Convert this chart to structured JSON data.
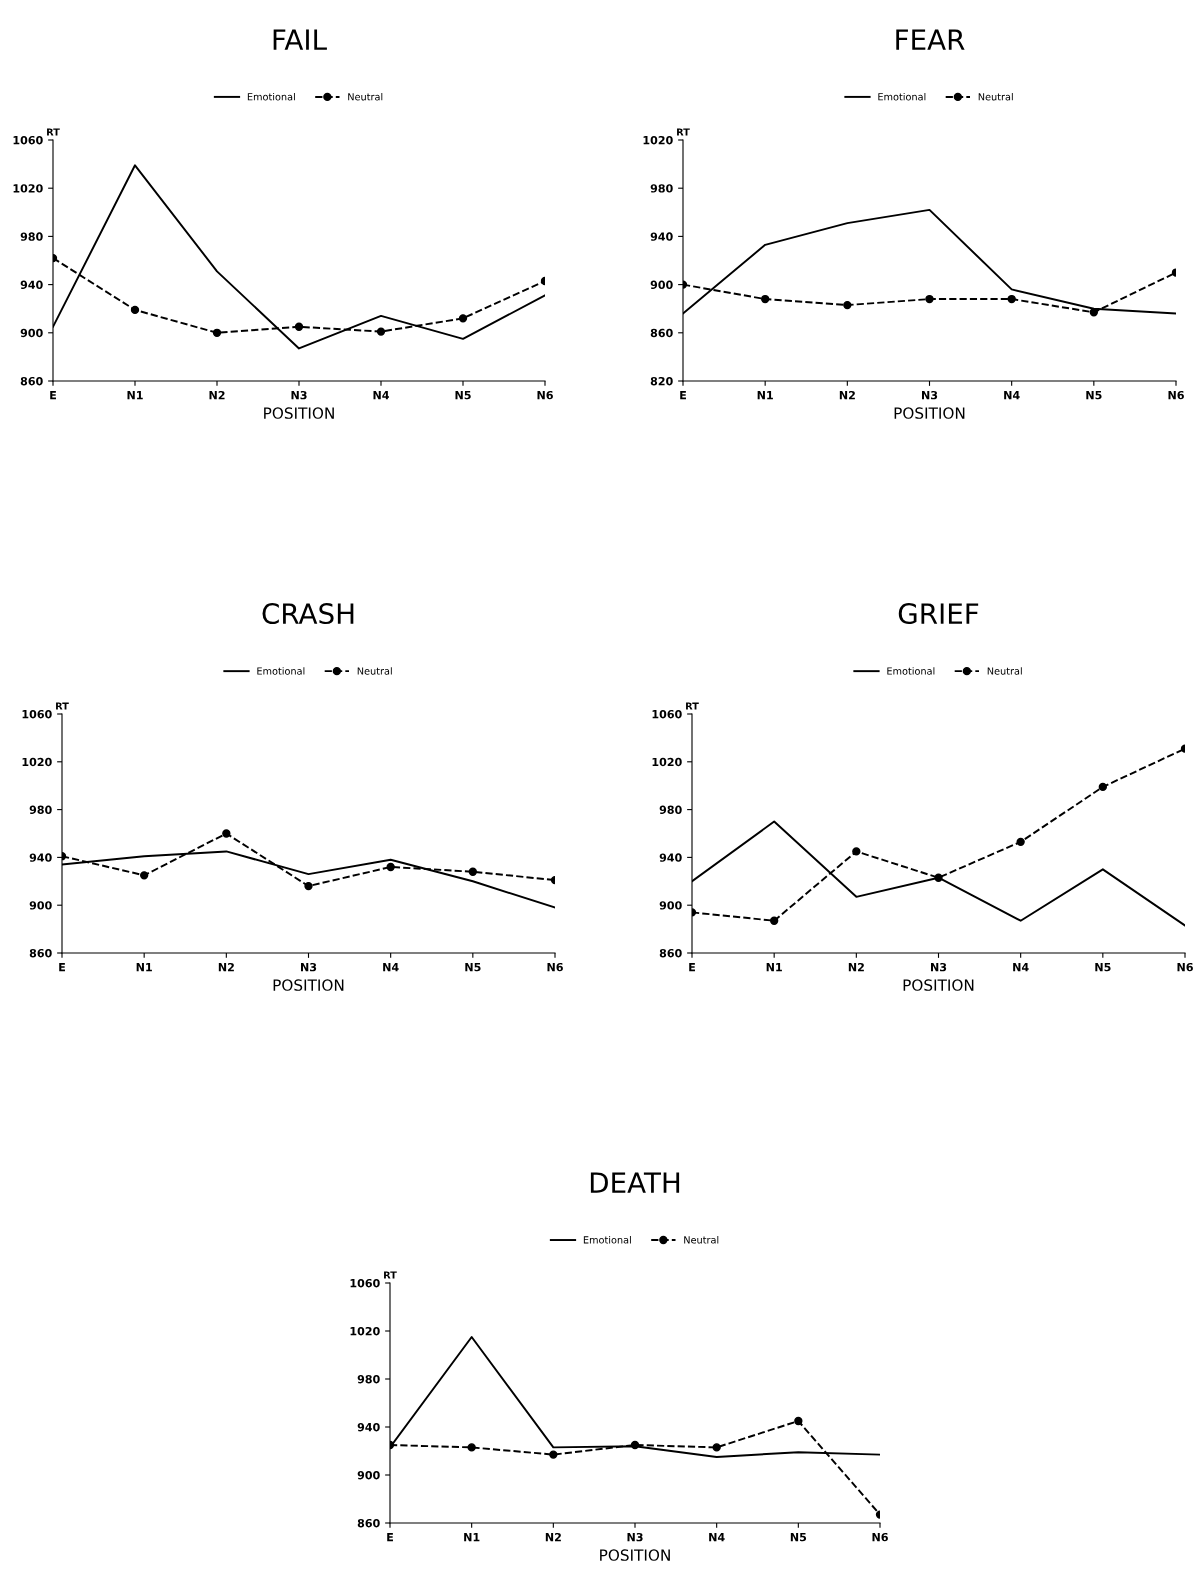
{
  "chart_data": [
    {
      "type": "line",
      "title": "FAIL",
      "xlabel": "POSITION",
      "ylabel": "RT",
      "categories": [
        "E",
        "N1",
        "N2",
        "N3",
        "N4",
        "N5",
        "N6"
      ],
      "ylim": [
        860,
        1060
      ],
      "yticks": [
        860,
        900,
        940,
        980,
        1020,
        1060
      ],
      "grid": false,
      "legend": "top",
      "series": [
        {
          "name": "Emotional",
          "color": "#000000",
          "line_style": "solid",
          "marker": "none",
          "values": [
            905,
            1039,
            951,
            887,
            914,
            895,
            931
          ]
        },
        {
          "name": "Neutral",
          "color": "#000000",
          "line_style": "dashed",
          "marker": "circle",
          "values": [
            962,
            919,
            900,
            905,
            901,
            912,
            943
          ]
        }
      ]
    },
    {
      "type": "line",
      "title": "FEAR",
      "xlabel": "POSITION",
      "ylabel": "RT",
      "categories": [
        "E",
        "N1",
        "N2",
        "N3",
        "N4",
        "N5",
        "N6"
      ],
      "ylim": [
        820,
        1020
      ],
      "yticks": [
        820,
        860,
        900,
        940,
        980,
        1020
      ],
      "grid": false,
      "legend": "top",
      "series": [
        {
          "name": "Emotional",
          "color": "#000000",
          "line_style": "solid",
          "marker": "none",
          "values": [
            876,
            933,
            951,
            962,
            896,
            880,
            876
          ]
        },
        {
          "name": "Neutral",
          "color": "#000000",
          "line_style": "dashed",
          "marker": "circle",
          "values": [
            900,
            888,
            883,
            888,
            888,
            877,
            910
          ]
        }
      ]
    },
    {
      "type": "line",
      "title": "CRASH",
      "xlabel": "POSITION",
      "ylabel": "RT",
      "categories": [
        "E",
        "N1",
        "N2",
        "N3",
        "N4",
        "N5",
        "N6"
      ],
      "ylim": [
        860,
        1060
      ],
      "yticks": [
        860,
        900,
        940,
        980,
        1020,
        1060
      ],
      "grid": false,
      "legend": "top",
      "series": [
        {
          "name": "Emotional",
          "color": "#000000",
          "line_style": "solid",
          "marker": "none",
          "values": [
            934,
            941,
            945,
            926,
            938,
            920,
            898
          ]
        },
        {
          "name": "Neutral",
          "color": "#000000",
          "line_style": "dashed",
          "marker": "circle",
          "values": [
            941,
            925,
            960,
            916,
            932,
            928,
            921
          ]
        }
      ]
    },
    {
      "type": "line",
      "title": "GRIEF",
      "xlabel": "POSITION",
      "ylabel": "RT",
      "categories": [
        "E",
        "N1",
        "N2",
        "N3",
        "N4",
        "N5",
        "N6"
      ],
      "ylim": [
        860,
        1060
      ],
      "yticks": [
        860,
        900,
        940,
        980,
        1020,
        1060
      ],
      "grid": false,
      "legend": "top",
      "series": [
        {
          "name": "Emotional",
          "color": "#000000",
          "line_style": "solid",
          "marker": "none",
          "values": [
            920,
            970,
            907,
            923,
            887,
            930,
            883
          ]
        },
        {
          "name": "Neutral",
          "color": "#000000",
          "line_style": "dashed",
          "marker": "circle",
          "values": [
            894,
            887,
            945,
            923,
            953,
            999,
            1031
          ]
        }
      ]
    },
    {
      "type": "line",
      "title": "DEATH",
      "xlabel": "POSITION",
      "ylabel": "RT",
      "categories": [
        "E",
        "N1",
        "N2",
        "N3",
        "N4",
        "N5",
        "N6"
      ],
      "ylim": [
        860,
        1060
      ],
      "yticks": [
        860,
        900,
        940,
        980,
        1020,
        1060
      ],
      "grid": false,
      "legend": "top",
      "series": [
        {
          "name": "Emotional",
          "color": "#000000",
          "line_style": "solid",
          "marker": "none",
          "values": [
            923,
            1015,
            923,
            924,
            915,
            919,
            917
          ]
        },
        {
          "name": "Neutral",
          "color": "#000000",
          "line_style": "dashed",
          "marker": "circle",
          "values": [
            925,
            923,
            917,
            925,
            923,
            945,
            867
          ]
        }
      ]
    }
  ]
}
